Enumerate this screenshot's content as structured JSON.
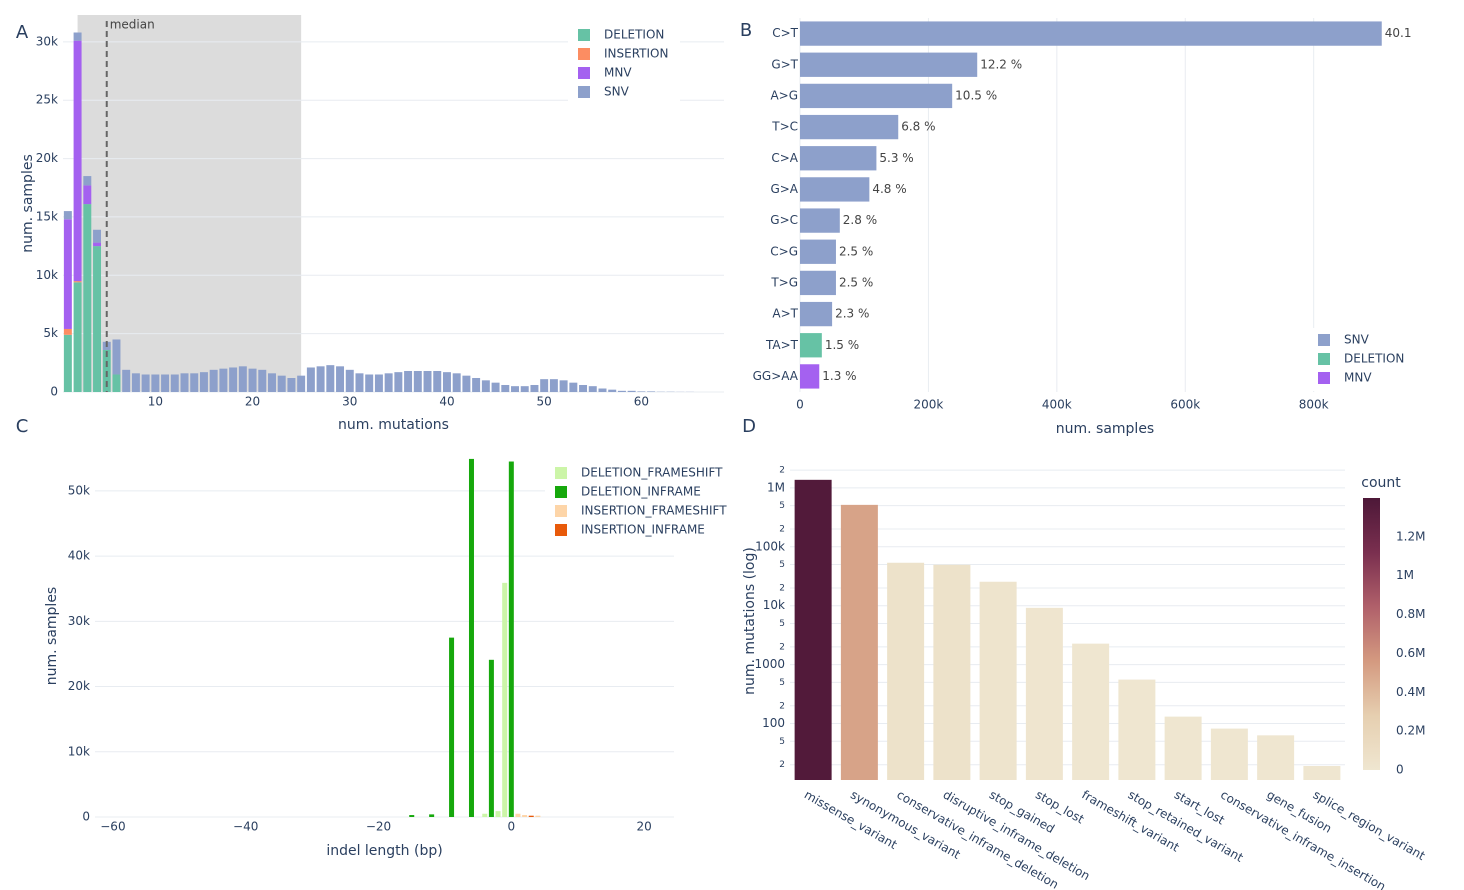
{
  "chart_data": [
    {
      "type": "bar",
      "panel": "A",
      "barmode": "stack",
      "xlabel": "num. mutations",
      "ylabel": "num. samples",
      "grid": true,
      "x": [
        1,
        2,
        3,
        4,
        5,
        6,
        7,
        8,
        9,
        10,
        11,
        12,
        13,
        14,
        15,
        16,
        17,
        18,
        19,
        20,
        21,
        22,
        23,
        24,
        25,
        26,
        27,
        28,
        29,
        30,
        31,
        32,
        33,
        34,
        35,
        36,
        37,
        38,
        39,
        40,
        41,
        42,
        43,
        44,
        45,
        46,
        47,
        48,
        49,
        50,
        51,
        52,
        53,
        54,
        55,
        56,
        57,
        58,
        59,
        60,
        61,
        62,
        63,
        64,
        65
      ],
      "series": [
        {
          "name": "DELETION",
          "color": "#66c2a5",
          "values": [
            4900,
            9400,
            16100,
            12500,
            3600,
            1500,
            0,
            0,
            0,
            0,
            0,
            0,
            0,
            0,
            0,
            0,
            0,
            0,
            0,
            0,
            0,
            0,
            0,
            0,
            0,
            0,
            0,
            0,
            0,
            0,
            0,
            0,
            0,
            0,
            0,
            0,
            0,
            0,
            0,
            0,
            0,
            0,
            0,
            0,
            0,
            0,
            0,
            0,
            0,
            0,
            0,
            0,
            0,
            0,
            0,
            0,
            0,
            0,
            0,
            0,
            0,
            0,
            0,
            0,
            0
          ]
        },
        {
          "name": "INSERTION",
          "color": "#fc8d62",
          "values": [
            500,
            100,
            0,
            0,
            0,
            0,
            0,
            0,
            0,
            0,
            0,
            0,
            0,
            0,
            0,
            0,
            0,
            0,
            0,
            0,
            0,
            0,
            0,
            0,
            0,
            0,
            0,
            0,
            0,
            0,
            0,
            0,
            0,
            0,
            0,
            0,
            0,
            0,
            0,
            0,
            0,
            0,
            0,
            0,
            0,
            0,
            0,
            0,
            0,
            0,
            0,
            0,
            0,
            0,
            0,
            0,
            0,
            0,
            0,
            0,
            0,
            0,
            0,
            0,
            0
          ]
        },
        {
          "name": "MNV",
          "color": "#a461f0",
          "values": [
            9400,
            20600,
            1600,
            300,
            0,
            0,
            0,
            0,
            0,
            0,
            0,
            0,
            0,
            0,
            0,
            0,
            0,
            0,
            0,
            0,
            0,
            0,
            0,
            0,
            0,
            0,
            0,
            0,
            0,
            0,
            0,
            0,
            0,
            0,
            0,
            0,
            0,
            0,
            0,
            0,
            0,
            0,
            0,
            0,
            0,
            0,
            0,
            0,
            0,
            0,
            0,
            0,
            0,
            0,
            0,
            0,
            0,
            0,
            0,
            0,
            0,
            0,
            0,
            0,
            0
          ]
        },
        {
          "name": "SNV",
          "color": "#8da0cb",
          "values": [
            700,
            700,
            800,
            1100,
            700,
            3000,
            1900,
            1600,
            1500,
            1500,
            1500,
            1500,
            1600,
            1600,
            1700,
            1900,
            2000,
            2100,
            2200,
            2000,
            1900,
            1600,
            1400,
            1200,
            1400,
            2100,
            2200,
            2300,
            2200,
            1900,
            1600,
            1500,
            1500,
            1600,
            1700,
            1800,
            1800,
            1800,
            1800,
            1700,
            1600,
            1400,
            1200,
            1000,
            800,
            600,
            500,
            500,
            600,
            1100,
            1100,
            1000,
            800,
            600,
            500,
            300,
            200,
            100,
            100,
            50,
            50,
            20,
            20,
            10,
            10
          ]
        }
      ],
      "xlim": [
        0.5,
        68.5
      ],
      "xticks": [
        10,
        20,
        30,
        40,
        50,
        60
      ],
      "ylim": [
        0,
        32300
      ],
      "yticks": [
        0,
        {
          "value": 5000,
          "label": "5k"
        },
        {
          "value": 10000,
          "label": "10k"
        },
        {
          "value": 15000,
          "label": "15k"
        },
        {
          "value": 20000,
          "label": "20k"
        },
        {
          "value": 25000,
          "label": "25k"
        },
        {
          "value": 30000,
          "label": "30k"
        }
      ],
      "shaded_x": [
        2,
        25
      ],
      "median_line": {
        "x": 5,
        "label": "median"
      }
    },
    {
      "type": "bar",
      "panel": "B",
      "orientation": "h",
      "xlabel": "num. samples",
      "grid": true,
      "categories": [
        "C>T",
        "G>T",
        "A>G",
        "T>C",
        "C>A",
        "G>A",
        "G>C",
        "C>G",
        "T>G",
        "A>T",
        "TA>T",
        "GG>AA"
      ],
      "values": [
        906000,
        276000,
        237000,
        153000,
        119000,
        108000,
        62000,
        56000,
        56000,
        50000,
        34000,
        30000
      ],
      "shares": [
        40.1,
        12.2,
        10.5,
        6.8,
        5.3,
        4.8,
        2.8,
        2.5,
        2.5,
        2.3,
        1.5,
        1.3
      ],
      "share_labels": [
        "40.1",
        "12.2 %",
        "10.5 %",
        "6.8 %",
        "5.3 %",
        "4.8 %",
        "2.8 %",
        "2.5 %",
        "2.5 %",
        "2.3 %",
        "1.5 %",
        "1.3 %"
      ],
      "bar_group": [
        "SNV",
        "SNV",
        "SNV",
        "SNV",
        "SNV",
        "SNV",
        "SNV",
        "SNV",
        "SNV",
        "SNV",
        "DELETION",
        "MNV"
      ],
      "legend": [
        {
          "name": "SNV",
          "color": "#8da0cb"
        },
        {
          "name": "DELETION",
          "color": "#66c2a5"
        },
        {
          "name": "MNV",
          "color": "#a461f0"
        }
      ],
      "xlim": [
        0,
        950000
      ],
      "xticks": [
        0,
        {
          "value": 200000,
          "label": "200k"
        },
        {
          "value": 400000,
          "label": "400k"
        },
        {
          "value": 600000,
          "label": "600k"
        },
        {
          "value": 800000,
          "label": "800k"
        }
      ]
    },
    {
      "type": "bar",
      "panel": "C",
      "barmode": "group",
      "xlabel": "indel length (bp)",
      "ylabel": "num. samples",
      "grid": true,
      "x": [
        -15,
        -12,
        -9,
        -6,
        -4,
        -3,
        -2,
        -1,
        0,
        1,
        2,
        3,
        4
      ],
      "series": [
        {
          "name": "DELETION_FRAMESHIFT",
          "color": "#ccf5a8",
          "values": [
            null,
            null,
            null,
            null,
            500,
            null,
            900,
            35900,
            null,
            null,
            null,
            null,
            null
          ]
        },
        {
          "name": "DELETION_INFRAME",
          "color": "#16a80c",
          "values": [
            300,
            400,
            27500,
            54900,
            null,
            24100,
            null,
            null,
            54500,
            null,
            null,
            null,
            null
          ]
        },
        {
          "name": "INSERTION_FRAMESHIFT",
          "color": "#fdd5a8",
          "values": [
            null,
            null,
            null,
            null,
            null,
            null,
            null,
            null,
            null,
            500,
            300,
            null,
            200
          ]
        },
        {
          "name": "INSERTION_INFRAME",
          "color": "#e85a0a",
          "values": [
            null,
            null,
            null,
            null,
            null,
            null,
            null,
            null,
            null,
            null,
            null,
            200,
            null
          ]
        }
      ],
      "xlim": [
        -62.7,
        24.5
      ],
      "xticks": [
        {
          "value": -60,
          "label": "−60"
        },
        {
          "value": -40,
          "label": "−40"
        },
        {
          "value": -20,
          "label": "−20"
        },
        0,
        20
      ],
      "ylim": [
        0,
        55500
      ],
      "yticks": [
        0,
        {
          "value": 10000,
          "label": "10k"
        },
        {
          "value": 20000,
          "label": "20k"
        },
        {
          "value": 30000,
          "label": "30k"
        },
        {
          "value": 40000,
          "label": "40k"
        },
        {
          "value": 50000,
          "label": "50k"
        }
      ]
    },
    {
      "type": "bar",
      "panel": "D",
      "log_y": true,
      "ylabel": "num. mutations (log)",
      "grid": true,
      "categories": [
        "missense_variant",
        "synonymous_variant",
        "conservative_inframe_deletion",
        "disruptive_inframe_deletion",
        "stop_gained",
        "stop_lost",
        "frameshift_variant",
        "stop_retained_variant",
        "start_lost",
        "conservative_inframe_insertion",
        "gene_fusion",
        "splice_region_variant"
      ],
      "values": [
        1370000,
        515000,
        53600,
        49500,
        25500,
        9200,
        2270,
        557,
        131,
        82,
        63,
        19
      ],
      "ylim": [
        11,
        2750000
      ],
      "yticks": [
        {
          "value": 2000000,
          "label": "2"
        },
        {
          "value": 1000000,
          "label": "1M"
        },
        {
          "value": 500000,
          "label": "5"
        },
        {
          "value": 200000,
          "label": "2"
        },
        {
          "value": 100000,
          "label": "100k"
        },
        {
          "value": 50000,
          "label": "5"
        },
        {
          "value": 20000,
          "label": "2"
        },
        {
          "value": 10000,
          "label": "10k"
        },
        {
          "value": 5000,
          "label": "5"
        },
        {
          "value": 2000,
          "label": "2"
        },
        1000,
        {
          "value": 500,
          "label": "5"
        },
        {
          "value": 200,
          "label": "2"
        },
        100,
        {
          "value": 50,
          "label": "5"
        },
        {
          "value": 20,
          "label": "2"
        }
      ],
      "colorscale": [
        "#efe6d0",
        "#e6cfb0",
        "#d49a80",
        "#b0606a",
        "#7a2f4f",
        "#4d1838"
      ],
      "colorbar": {
        "title": "count",
        "lim": [
          0,
          1400000
        ],
        "ticks": [
          0,
          {
            "value": 200000,
            "label": "0.2M"
          },
          {
            "value": 400000,
            "label": "0.4M"
          },
          {
            "value": 600000,
            "label": "0.6M"
          },
          {
            "value": 800000,
            "label": "0.8M"
          },
          {
            "value": 1000000,
            "label": "1M"
          },
          {
            "value": 1200000,
            "label": "1.2M"
          }
        ]
      }
    }
  ]
}
